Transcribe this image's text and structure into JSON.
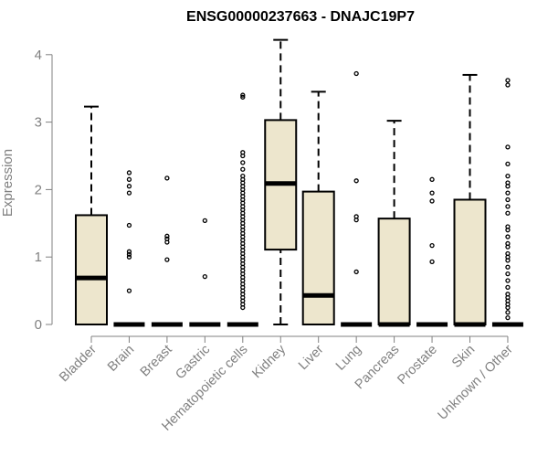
{
  "chart_data": {
    "type": "boxplot",
    "title": "ENSG00000237663 - DNAJC19P7",
    "xlabel": "",
    "ylabel": "Expression",
    "ylim": [
      0,
      4.2
    ],
    "yticks": [
      0,
      1,
      2,
      3,
      4
    ],
    "grid": false,
    "colors": {
      "box_fill": "#ede6cd",
      "stroke": "#000000",
      "outlier": "#000000",
      "axis_text": "#808080"
    },
    "categories": [
      "Bladder",
      "Brain",
      "Breast",
      "Gastric",
      "Hematopoietic cells",
      "Kidney",
      "Liver",
      "Lung",
      "Pancreas",
      "Prostate",
      "Skin",
      "Unknown / Other"
    ],
    "boxes": [
      {
        "category": "Bladder",
        "whisker_low": 0,
        "q1": 0,
        "median": 0.69,
        "q3": 1.62,
        "whisker_high": 3.23,
        "outliers": []
      },
      {
        "category": "Brain",
        "whisker_low": 0,
        "q1": 0,
        "median": 0,
        "q3": 0,
        "whisker_high": 0,
        "outliers": [
          2.25,
          2.15,
          2.05,
          1.95,
          1.47,
          1.08,
          1.04,
          1.0,
          0.5
        ]
      },
      {
        "category": "Breast",
        "whisker_low": 0,
        "q1": 0,
        "median": 0,
        "q3": 0,
        "whisker_high": 0,
        "outliers": [
          2.17,
          1.31,
          1.27,
          1.22,
          0.96
        ]
      },
      {
        "category": "Gastric",
        "whisker_low": 0,
        "q1": 0,
        "median": 0,
        "q3": 0,
        "whisker_high": 0,
        "outliers": [
          1.54,
          0.71
        ]
      },
      {
        "category": "Hematopoietic cells",
        "whisker_low": 0,
        "q1": 0,
        "median": 0,
        "q3": 0,
        "whisker_high": 0,
        "outliers": [
          3.4,
          3.37,
          2.55,
          2.5,
          2.4,
          2.3,
          2.2,
          2.15,
          2.1,
          2.05,
          2.0,
          1.95,
          1.9,
          1.85,
          1.8,
          1.75,
          1.7,
          1.65,
          1.6,
          1.55,
          1.5,
          1.45,
          1.4,
          1.35,
          1.3,
          1.25,
          1.2,
          1.15,
          1.1,
          1.05,
          1.0,
          0.95,
          0.9,
          0.85,
          0.8,
          0.75,
          0.7,
          0.65,
          0.6,
          0.55,
          0.5,
          0.45,
          0.4,
          0.35,
          0.3,
          0.25
        ]
      },
      {
        "category": "Kidney",
        "whisker_low": 0,
        "q1": 1.11,
        "median": 2.09,
        "q3": 3.03,
        "whisker_high": 4.22,
        "outliers": []
      },
      {
        "category": "Liver",
        "whisker_low": 0,
        "q1": 0,
        "median": 0.43,
        "q3": 1.97,
        "whisker_high": 3.45,
        "outliers": []
      },
      {
        "category": "Lung",
        "whisker_low": 0,
        "q1": 0,
        "median": 0,
        "q3": 0,
        "whisker_high": 0,
        "outliers": [
          3.72,
          2.13,
          1.6,
          1.55,
          0.78
        ]
      },
      {
        "category": "Pancreas",
        "whisker_low": 0,
        "q1": 0,
        "median": 0,
        "q3": 1.57,
        "whisker_high": 3.02,
        "outliers": []
      },
      {
        "category": "Prostate",
        "whisker_low": 0,
        "q1": 0,
        "median": 0,
        "q3": 0,
        "whisker_high": 0,
        "outliers": [
          2.15,
          1.95,
          1.83,
          1.17,
          0.93
        ]
      },
      {
        "category": "Skin",
        "whisker_low": 0,
        "q1": 0,
        "median": 0,
        "q3": 1.85,
        "whisker_high": 3.7,
        "outliers": []
      },
      {
        "category": "Unknown / Other",
        "whisker_low": 0,
        "q1": 0,
        "median": 0,
        "q3": 0,
        "whisker_high": 0,
        "outliers": [
          3.62,
          3.55,
          2.63,
          2.38,
          2.2,
          2.1,
          2.05,
          1.95,
          1.85,
          1.75,
          1.65,
          1.45,
          1.4,
          1.3,
          1.2,
          1.15,
          1.05,
          1.0,
          0.95,
          0.85,
          0.75,
          0.65,
          0.55,
          0.45,
          0.4,
          0.35,
          0.3,
          0.25,
          0.18,
          0.1
        ]
      }
    ]
  }
}
